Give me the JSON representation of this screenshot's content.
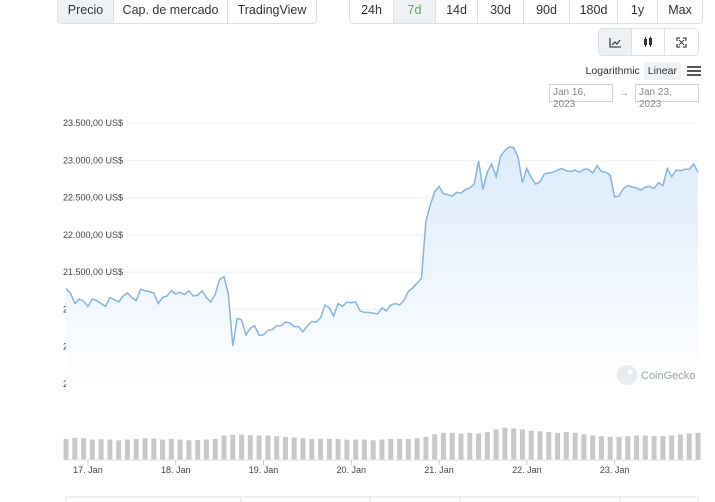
{
  "view_tabs": [
    "Precio",
    "Cap. de mercado",
    "TradingView"
  ],
  "view_tabs_active": 0,
  "range_tabs": [
    "24h",
    "7d",
    "14d",
    "30d",
    "90d",
    "180d",
    "1y",
    "Max"
  ],
  "range_tabs_active": 1,
  "chart_type_icons": [
    "line-chart-icon",
    "candlestick-icon",
    "fullscreen-icon"
  ],
  "scale": {
    "logarithmic": "Logarithmic",
    "linear": "Linear",
    "active": "linear"
  },
  "date_range": {
    "from": "Jan 16, 2023",
    "to": "Jan 23, 2023"
  },
  "watermark": "CoinGecko",
  "colors": {
    "line": "#86b4dd",
    "fill_top": "#dcebfa",
    "fill_bottom": "#ffffff",
    "volume": "#c8c8c8",
    "active_range": "#4caf50"
  },
  "chart_data": {
    "type": "area",
    "title": "",
    "xlabel": "",
    "ylabel": "",
    "y_ticks": [
      "23.500,00 US$",
      "23.000,00 US$",
      "22.500,00 US$",
      "22.000,00 US$",
      "21.500,00 US$",
      "21.000,00 US$",
      "20.500,00 US$",
      "20.000,00 US$"
    ],
    "y_tick_values": [
      23500,
      23000,
      22500,
      22000,
      21500,
      21000,
      20500,
      20000
    ],
    "ylim": [
      20000,
      23500
    ],
    "x_ticks": [
      "17. Jan",
      "18. Jan",
      "19. Jan",
      "20. Jan",
      "21. Jan",
      "22. Jan",
      "23. Jan"
    ],
    "x_range_days": [
      16.75,
      23.95
    ],
    "series": [
      {
        "x": [
          16.75,
          16.8,
          16.85,
          16.9,
          16.95,
          17.0,
          17.05,
          17.1,
          17.15,
          17.2,
          17.25,
          17.3,
          17.35,
          17.4,
          17.45,
          17.5,
          17.55,
          17.6,
          17.65,
          17.7,
          17.75,
          17.8,
          17.85,
          17.9,
          17.95,
          18.0,
          18.05,
          18.1,
          18.15,
          18.2,
          18.25,
          18.3,
          18.35,
          18.4,
          18.45,
          18.5,
          18.55,
          18.6,
          18.65,
          18.7,
          18.75,
          18.8,
          18.85,
          18.9,
          18.95,
          19.0,
          19.05,
          19.1,
          19.15,
          19.2,
          19.25,
          19.3,
          19.35,
          19.4,
          19.45,
          19.5,
          19.55,
          19.6,
          19.65,
          19.7,
          19.75,
          19.8,
          19.85,
          19.9,
          19.95,
          20.0,
          20.05,
          20.1,
          20.15,
          20.2,
          20.25,
          20.3,
          20.35,
          20.4,
          20.45,
          20.5,
          20.55,
          20.6,
          20.65,
          20.7,
          20.75,
          20.8,
          20.85,
          20.9,
          20.95,
          21.0,
          21.05,
          21.1,
          21.15,
          21.2,
          21.25,
          21.3,
          21.35,
          21.4,
          21.45,
          21.5,
          21.55,
          21.6,
          21.65,
          21.7,
          21.75,
          21.8,
          21.85,
          21.9,
          21.95,
          22.0,
          22.05,
          22.1,
          22.15,
          22.2,
          22.25,
          22.3,
          22.35,
          22.4,
          22.45,
          22.5,
          22.55,
          22.6,
          22.65,
          22.7,
          22.75,
          22.8,
          22.85,
          22.9,
          22.95,
          23.0,
          23.05,
          23.1,
          23.15,
          23.2,
          23.25,
          23.3,
          23.35,
          23.4,
          23.45,
          23.5,
          23.55,
          23.6,
          23.65,
          23.7,
          23.75,
          23.8,
          23.85,
          23.9,
          23.95
        ],
        "values": [
          21280,
          21220,
          21080,
          21140,
          21110,
          21040,
          21140,
          21120,
          21080,
          21040,
          21160,
          21130,
          21100,
          21180,
          21220,
          21160,
          21120,
          21270,
          21250,
          21240,
          21220,
          21080,
          21160,
          21180,
          21250,
          21210,
          21230,
          21200,
          21250,
          21180,
          21190,
          21250,
          21160,
          21100,
          21200,
          21400,
          21440,
          21200,
          20510,
          20880,
          20860,
          20660,
          20750,
          20780,
          20650,
          20660,
          20720,
          20730,
          20780,
          20780,
          20830,
          20820,
          20770,
          20770,
          20700,
          20780,
          20840,
          20830,
          20890,
          21060,
          21020,
          20910,
          21080,
          21040,
          21100,
          21090,
          21100,
          20980,
          20960,
          20960,
          20950,
          20940,
          21020,
          20980,
          21060,
          21080,
          21060,
          21120,
          21240,
          21290,
          21350,
          21420,
          22180,
          22400,
          22580,
          22650,
          22550,
          22540,
          22520,
          22570,
          22560,
          22610,
          22630,
          22680,
          22990,
          22610,
          22840,
          22950,
          22780,
          23050,
          23130,
          23180,
          23170,
          23040,
          22700,
          22890,
          22770,
          22680,
          22710,
          22820,
          22830,
          22840,
          22870,
          22890,
          22860,
          22850,
          22870,
          22840,
          22880,
          22880,
          22830,
          22930,
          22850,
          22840,
          22800,
          22510,
          22520,
          22620,
          22660,
          22640,
          22630,
          22600,
          22640,
          22650,
          22620,
          22700,
          22660,
          22890,
          22780,
          22870,
          22860,
          22880,
          22880,
          22950,
          22840
        ]
      }
    ],
    "volume": {
      "x": [
        16.75,
        16.85,
        16.95,
        17.05,
        17.15,
        17.25,
        17.35,
        17.45,
        17.55,
        17.65,
        17.75,
        17.85,
        17.95,
        18.05,
        18.15,
        18.25,
        18.35,
        18.45,
        18.55,
        18.65,
        18.75,
        18.85,
        18.95,
        19.05,
        19.15,
        19.25,
        19.35,
        19.45,
        19.55,
        19.65,
        19.75,
        19.85,
        19.95,
        20.05,
        20.15,
        20.25,
        20.35,
        20.45,
        20.55,
        20.65,
        20.75,
        20.85,
        20.95,
        21.05,
        21.15,
        21.25,
        21.35,
        21.45,
        21.55,
        21.65,
        21.75,
        21.85,
        21.95,
        22.05,
        22.15,
        22.25,
        22.35,
        22.45,
        22.55,
        22.65,
        22.75,
        22.85,
        22.95,
        23.05,
        23.15,
        23.25,
        23.35,
        23.45,
        23.55,
        23.65,
        23.75,
        23.85,
        23.95
      ],
      "values": [
        0.62,
        0.65,
        0.64,
        0.6,
        0.61,
        0.6,
        0.58,
        0.6,
        0.62,
        0.64,
        0.63,
        0.6,
        0.62,
        0.6,
        0.58,
        0.59,
        0.6,
        0.62,
        0.72,
        0.74,
        0.75,
        0.73,
        0.72,
        0.72,
        0.7,
        0.68,
        0.66,
        0.64,
        0.62,
        0.63,
        0.62,
        0.62,
        0.6,
        0.6,
        0.6,
        0.58,
        0.6,
        0.62,
        0.62,
        0.62,
        0.64,
        0.68,
        0.76,
        0.8,
        0.8,
        0.78,
        0.8,
        0.78,
        0.82,
        0.9,
        0.95,
        0.93,
        0.9,
        0.86,
        0.84,
        0.82,
        0.8,
        0.82,
        0.8,
        0.76,
        0.72,
        0.7,
        0.68,
        0.68,
        0.7,
        0.72,
        0.72,
        0.7,
        0.7,
        0.72,
        0.75,
        0.78,
        0.8
      ]
    },
    "grid": true,
    "legend": "none"
  }
}
